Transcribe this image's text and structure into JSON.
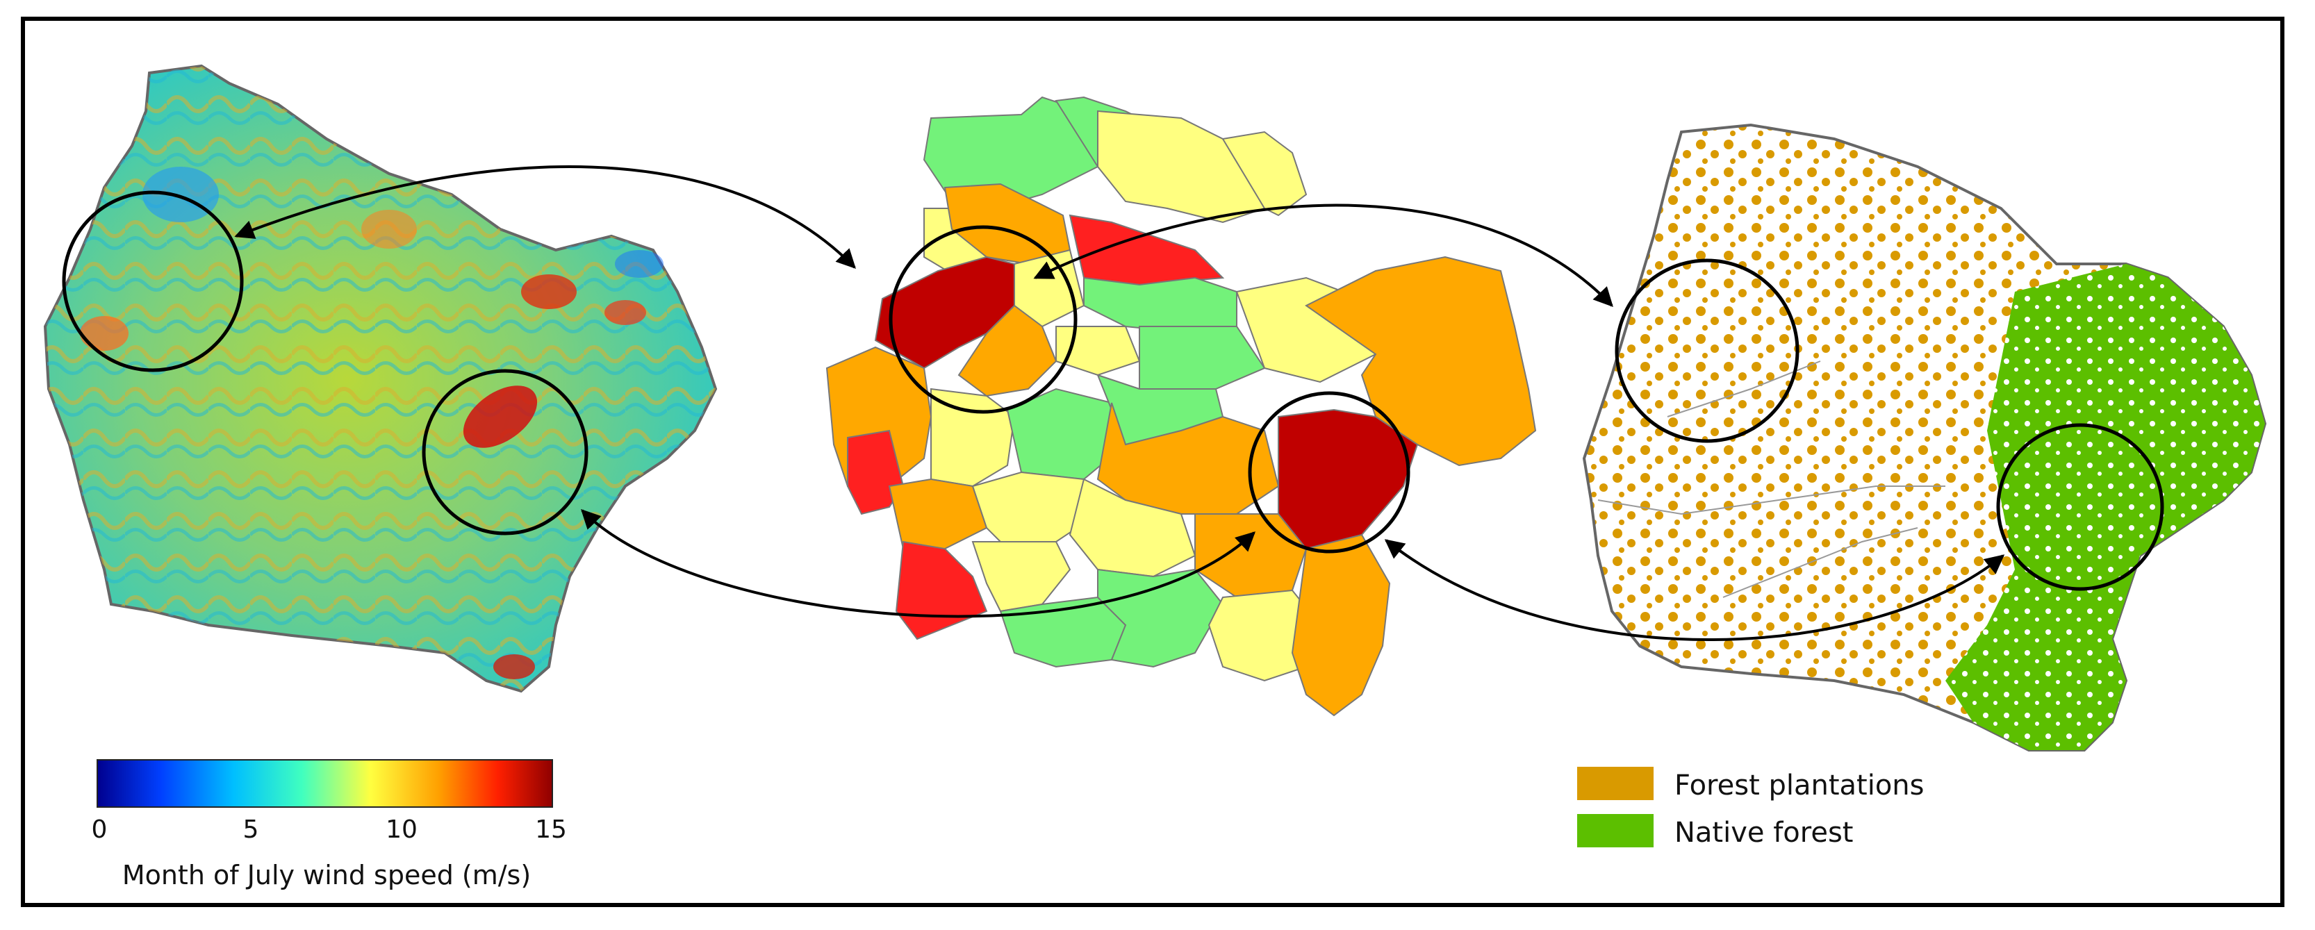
{
  "colorbar": {
    "title": "Month of July wind speed (m/s)",
    "ticks": [
      "0",
      "5",
      "10",
      "15"
    ],
    "range": [
      0,
      15
    ],
    "colors": [
      "#00008f",
      "#0040ff",
      "#00bfff",
      "#40ffbf",
      "#bfff40",
      "#ffbf00",
      "#ff4000",
      "#8f0000"
    ]
  },
  "legend": {
    "items": [
      {
        "label": "Forest plantations",
        "color": "#d99a00"
      },
      {
        "label": "Native forest",
        "color": "#5cbf00"
      }
    ]
  },
  "colors": {
    "dark_red": "#c00000",
    "red": "#ff2020",
    "orange": "#ffa800",
    "yellow": "#ffff80",
    "light_green": "#73f27a",
    "plantation": "#d99a00",
    "native": "#5cbf00"
  }
}
